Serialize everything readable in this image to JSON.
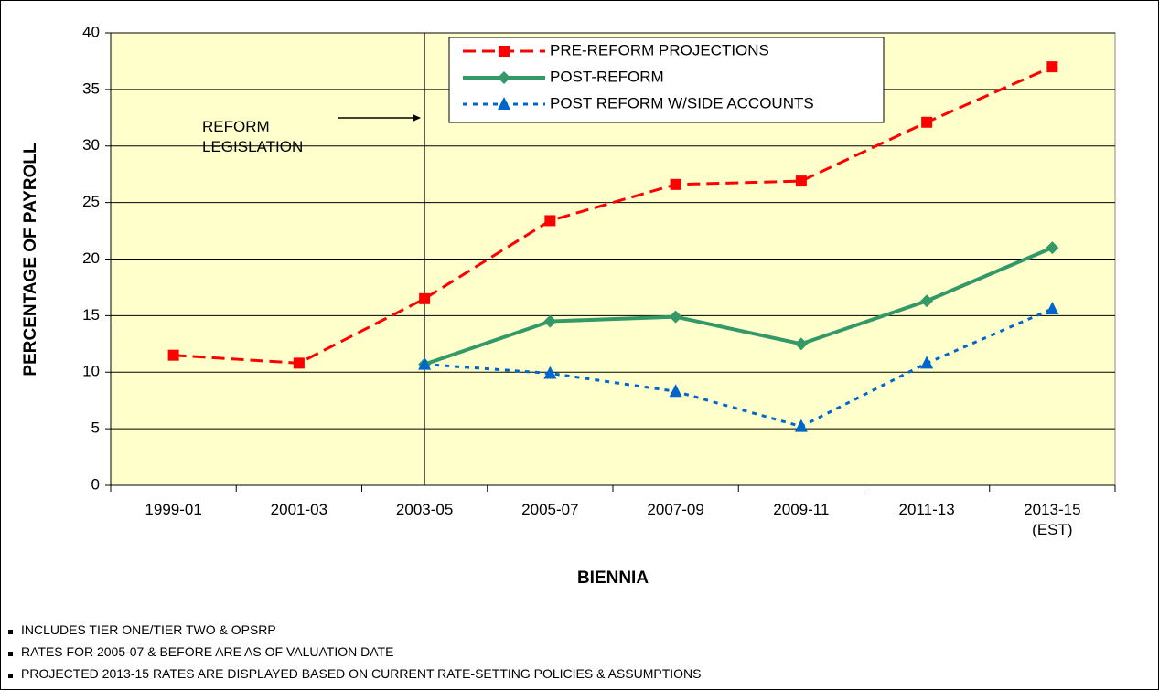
{
  "chart_data": {
    "type": "line",
    "y_label": "PERCENTAGE OF PAYROLL",
    "x_label": "BIENNIA",
    "categories": [
      "1999-01",
      "2001-03",
      "2003-05",
      "2005-07",
      "2007-09",
      "2009-11",
      "2011-13",
      "2013-15 (EST)"
    ],
    "series": [
      {
        "name": "PRE-REFORM PROJECTIONS",
        "color": "#ff0000",
        "marker": "square",
        "dash": "dashed",
        "values": [
          11.5,
          10.8,
          16.5,
          23.4,
          26.6,
          26.9,
          32.1,
          37.0
        ]
      },
      {
        "name": "POST-REFORM",
        "color": "#339966",
        "marker": "diamond",
        "dash": "solid",
        "values": [
          null,
          null,
          10.7,
          14.5,
          14.9,
          12.5,
          16.3,
          21.0
        ]
      },
      {
        "name": "POST REFORM W/SIDE ACCOUNTS",
        "color": "#0066cc",
        "marker": "triangle",
        "dash": "dotted",
        "values": [
          null,
          null,
          10.7,
          9.9,
          8.3,
          5.2,
          10.8,
          15.6
        ]
      }
    ],
    "ylim": [
      0,
      40
    ],
    "yticks": [
      0,
      5,
      10,
      15,
      20,
      25,
      30,
      35,
      40
    ],
    "grid": true,
    "legend": "top",
    "annotation": {
      "text": "REFORM LEGISLATION",
      "category": 2
    },
    "notes": [
      "INCLUDES TIER ONE/TIER TWO & OPSRP",
      "RATES FOR 2005-07 & BEFORE ARE AS OF VALUATION DATE",
      "PROJECTED 2013-15 RATES ARE DISPLAYED BASED ON CURRENT RATE-SETTING POLICIES & ASSUMPTIONS"
    ]
  }
}
